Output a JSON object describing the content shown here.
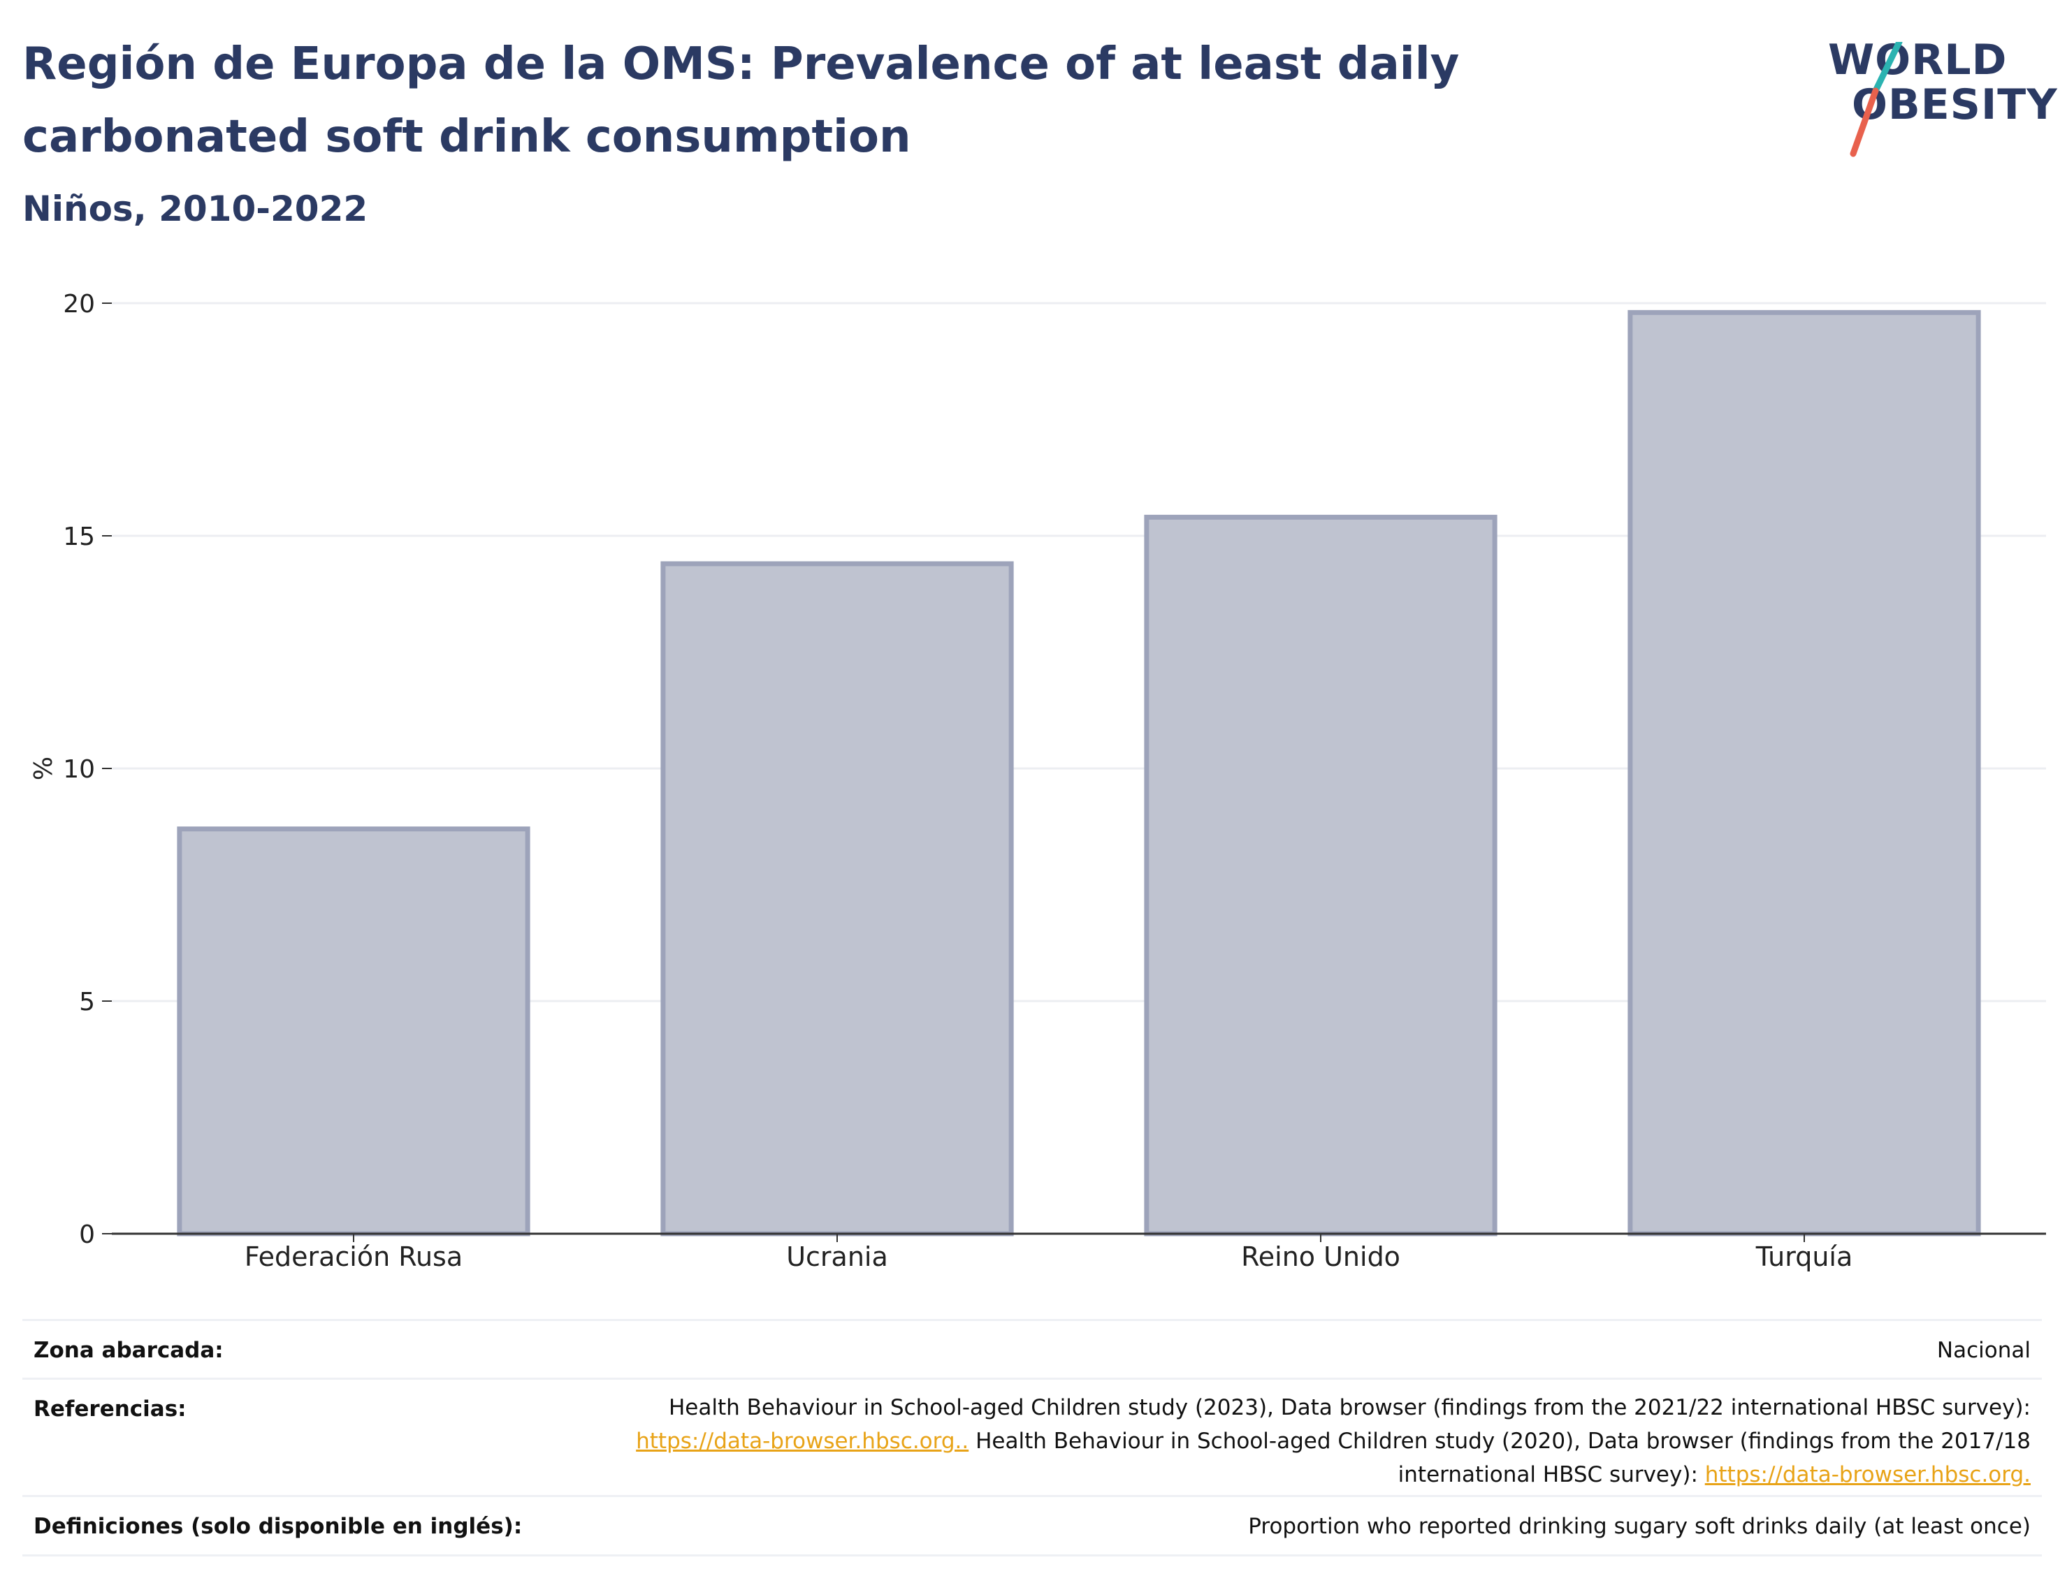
{
  "header": {
    "title": "Región de Europa de la OMS: Prevalence of at least daily carbonated soft drink consumption",
    "subtitle": "Niños, 2010-2022"
  },
  "logo": {
    "line1": "WORLD",
    "line2": "OBESITY",
    "colors": {
      "text": "#2b3a63",
      "slash_top": "#2bb3b1",
      "slash_bottom": "#e8614d"
    }
  },
  "chart_data": {
    "type": "bar",
    "title": "",
    "xlabel": "",
    "ylabel": "%",
    "categories": [
      "Federación Rusa",
      "Ucrania",
      "Reino Unido",
      "Turquía"
    ],
    "values": [
      8.7,
      14.4,
      15.4,
      19.8
    ],
    "ylim": [
      0,
      20
    ],
    "yticks": [
      0,
      5,
      10,
      15,
      20
    ],
    "grid": true,
    "legend": "none",
    "colors": {
      "bar_fill": "#bfc3d0",
      "bar_stroke": "#9da3ba",
      "grid": "#eceef2",
      "axis": "#333333"
    }
  },
  "footer": {
    "zona": {
      "label": "Zona abarcada:",
      "value": "Nacional"
    },
    "referencias": {
      "label": "Referencias:",
      "line1": "Health Behaviour in School-aged Children study (2023), Data browser (findings from the 2021/22 international HBSC survey):",
      "link1": "https://data-browser.hbsc.org..",
      "line2_rest": " Health Behaviour in School-aged Children study (2020), Data browser (findings from the 2017/18",
      "line3_text": "international HBSC survey): ",
      "link2": "https://data-browser.hbsc.org."
    },
    "definiciones": {
      "label": "Definiciones (solo disponible en inglés):",
      "value": "Proportion who reported drinking sugary soft drinks daily (at least once)"
    }
  }
}
